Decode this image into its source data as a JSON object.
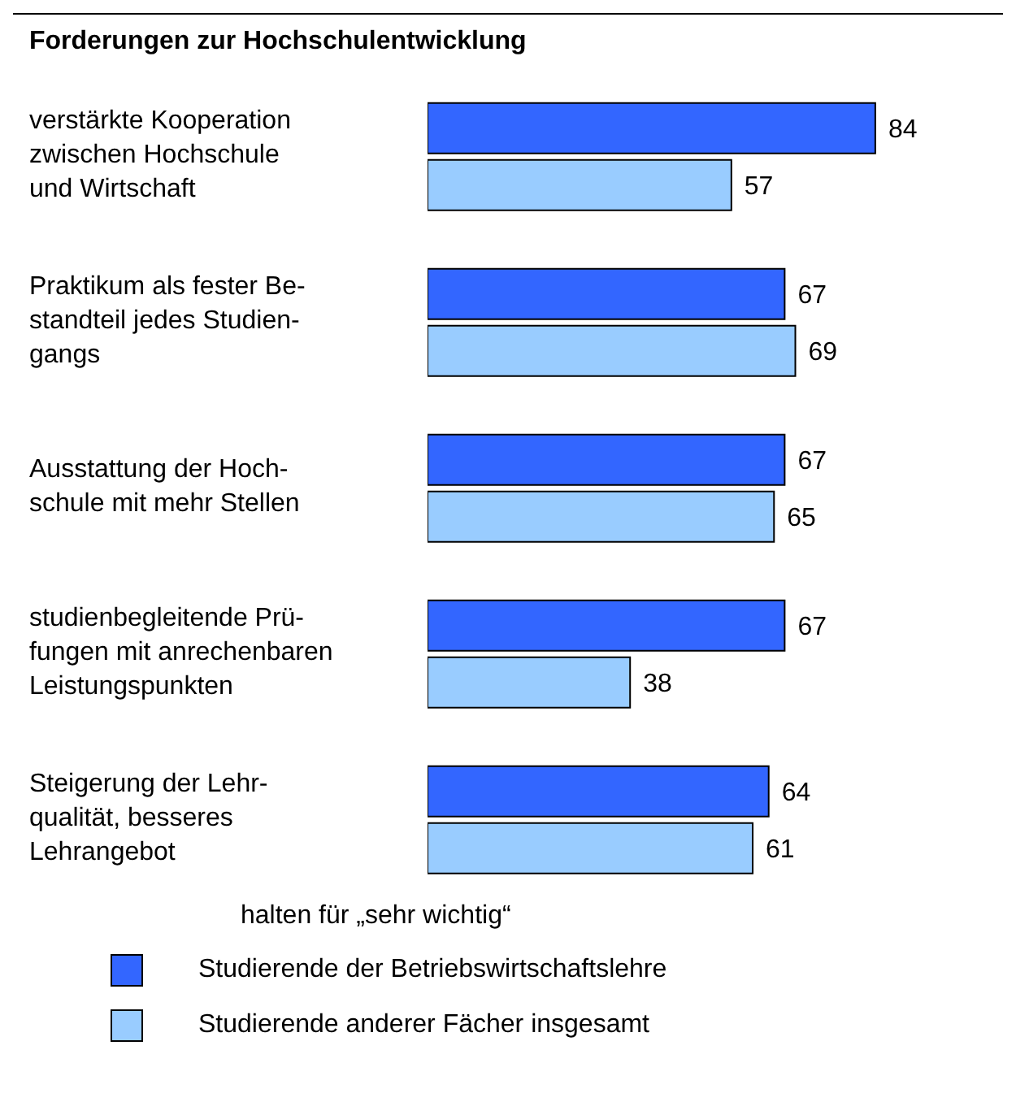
{
  "chart_data": {
    "type": "bar",
    "orientation": "horizontal",
    "title": "Forderungen zur Hochschulentwicklung",
    "legend_title": "halten für „sehr wichtig“",
    "categories": [
      "verstärkte Kooperation\nzwischen Hochschule\nund Wirtschaft",
      "Praktikum als fester Be-\nstandteil jedes Studien-\ngangs",
      "Ausstattung der Hoch-\nschule mit mehr Stellen",
      "studienbegleitende Prü-\nfungen mit anrechenbaren\nLeistungspunkten",
      "Steigerung der Lehr-\nqualität, besseres\nLehrangebot"
    ],
    "series": [
      {
        "name": "Studierende der Betriebswirtschaftslehre",
        "color": "#3366ff",
        "values": [
          84,
          67,
          67,
          67,
          64
        ]
      },
      {
        "name": "Studierende anderer Fächer insgesamt",
        "color": "#99ccff",
        "values": [
          57,
          69,
          65,
          38,
          61
        ]
      }
    ],
    "data_labels": true,
    "legend": "bottom"
  }
}
